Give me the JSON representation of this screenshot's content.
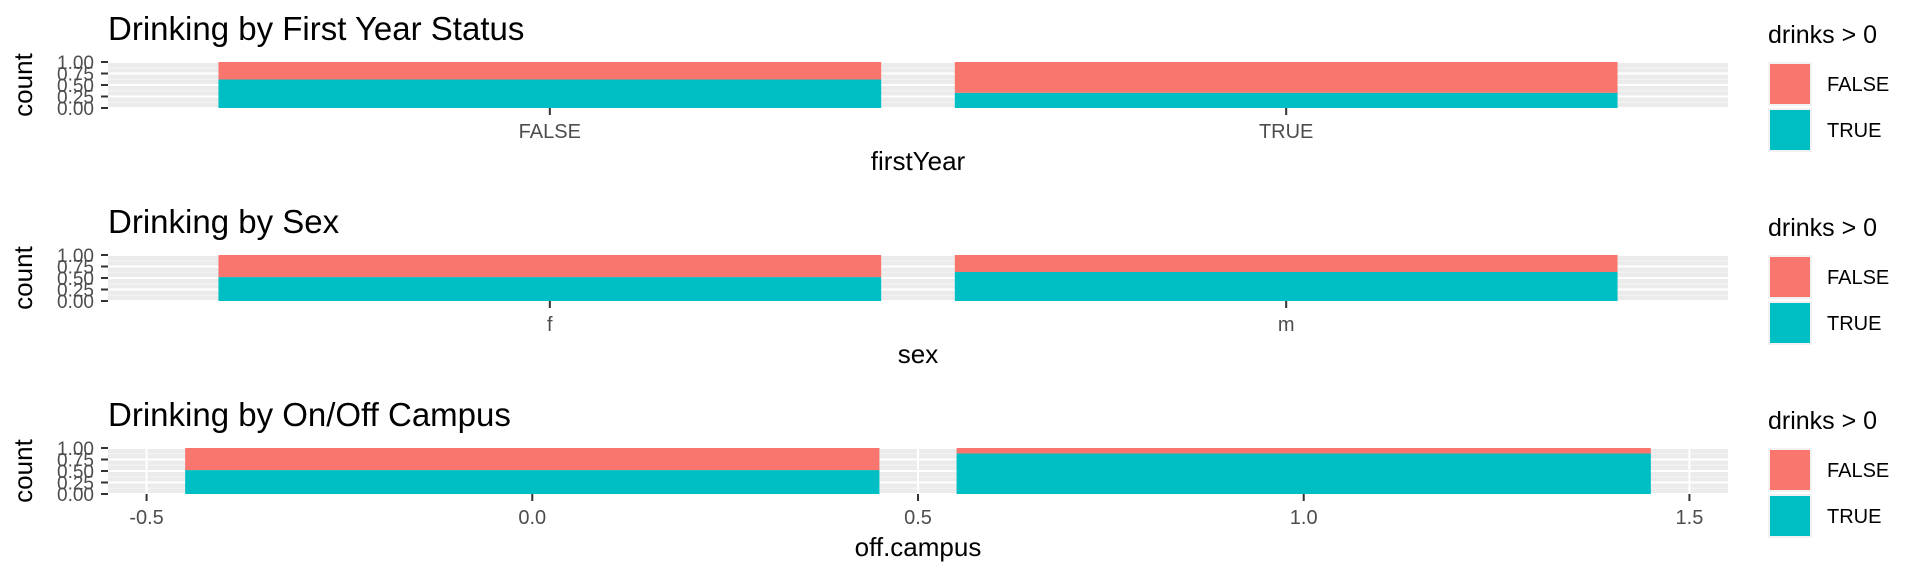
{
  "colors": {
    "false": "#F8766D",
    "true": "#00BFC4",
    "panel": "#EBEBEB",
    "grid_major": "#FFFFFF",
    "grid_minor": "#F5F5F5",
    "text": "#000000",
    "tick_text": "#4D4D4D"
  },
  "chart_data": [
    {
      "type": "bar",
      "position": "fill",
      "title": "Drinking by First Year Status",
      "xlabel": "firstYear",
      "ylabel": "count",
      "y_ticks": [
        "0.00",
        "0.25",
        "0.50",
        "0.75",
        "1.00"
      ],
      "ylim": [
        0,
        1
      ],
      "x_scale": "discrete",
      "categories": [
        "FALSE",
        "TRUE"
      ],
      "series": [
        {
          "name": "FALSE",
          "values": [
            0.38,
            0.67
          ]
        },
        {
          "name": "TRUE",
          "values": [
            0.62,
            0.33
          ]
        }
      ],
      "legend": {
        "title": "drinks > 0",
        "entries": [
          "FALSE",
          "TRUE"
        ],
        "placement": "right"
      }
    },
    {
      "type": "bar",
      "position": "fill",
      "title": "Drinking by Sex",
      "xlabel": "sex",
      "ylabel": "count",
      "y_ticks": [
        "0.00",
        "0.25",
        "0.50",
        "0.75",
        "1.00"
      ],
      "ylim": [
        0,
        1
      ],
      "x_scale": "discrete",
      "categories": [
        "f",
        "m"
      ],
      "series": [
        {
          "name": "FALSE",
          "values": [
            0.48,
            0.37
          ]
        },
        {
          "name": "TRUE",
          "values": [
            0.52,
            0.63
          ]
        }
      ],
      "legend": {
        "title": "drinks > 0",
        "entries": [
          "FALSE",
          "TRUE"
        ],
        "placement": "right"
      }
    },
    {
      "type": "bar",
      "position": "fill",
      "title": "Drinking by On/Off Campus",
      "xlabel": "off.campus",
      "ylabel": "count",
      "y_ticks": [
        "0.00",
        "0.25",
        "0.50",
        "0.75",
        "1.00"
      ],
      "ylim": [
        0,
        1
      ],
      "x_scale": "continuous",
      "xlim": [
        -0.55,
        1.55
      ],
      "x_ticks": [
        -0.5,
        0.0,
        0.5,
        1.0,
        1.5
      ],
      "x_tick_labels": [
        "-0.5",
        "0.0",
        "0.5",
        "1.0",
        "1.5"
      ],
      "categories": [
        0,
        1
      ],
      "series": [
        {
          "name": "FALSE",
          "values": [
            0.48,
            0.12
          ]
        },
        {
          "name": "TRUE",
          "values": [
            0.52,
            0.88
          ]
        }
      ],
      "legend": {
        "title": "drinks > 0",
        "entries": [
          "FALSE",
          "TRUE"
        ],
        "placement": "right"
      }
    }
  ]
}
